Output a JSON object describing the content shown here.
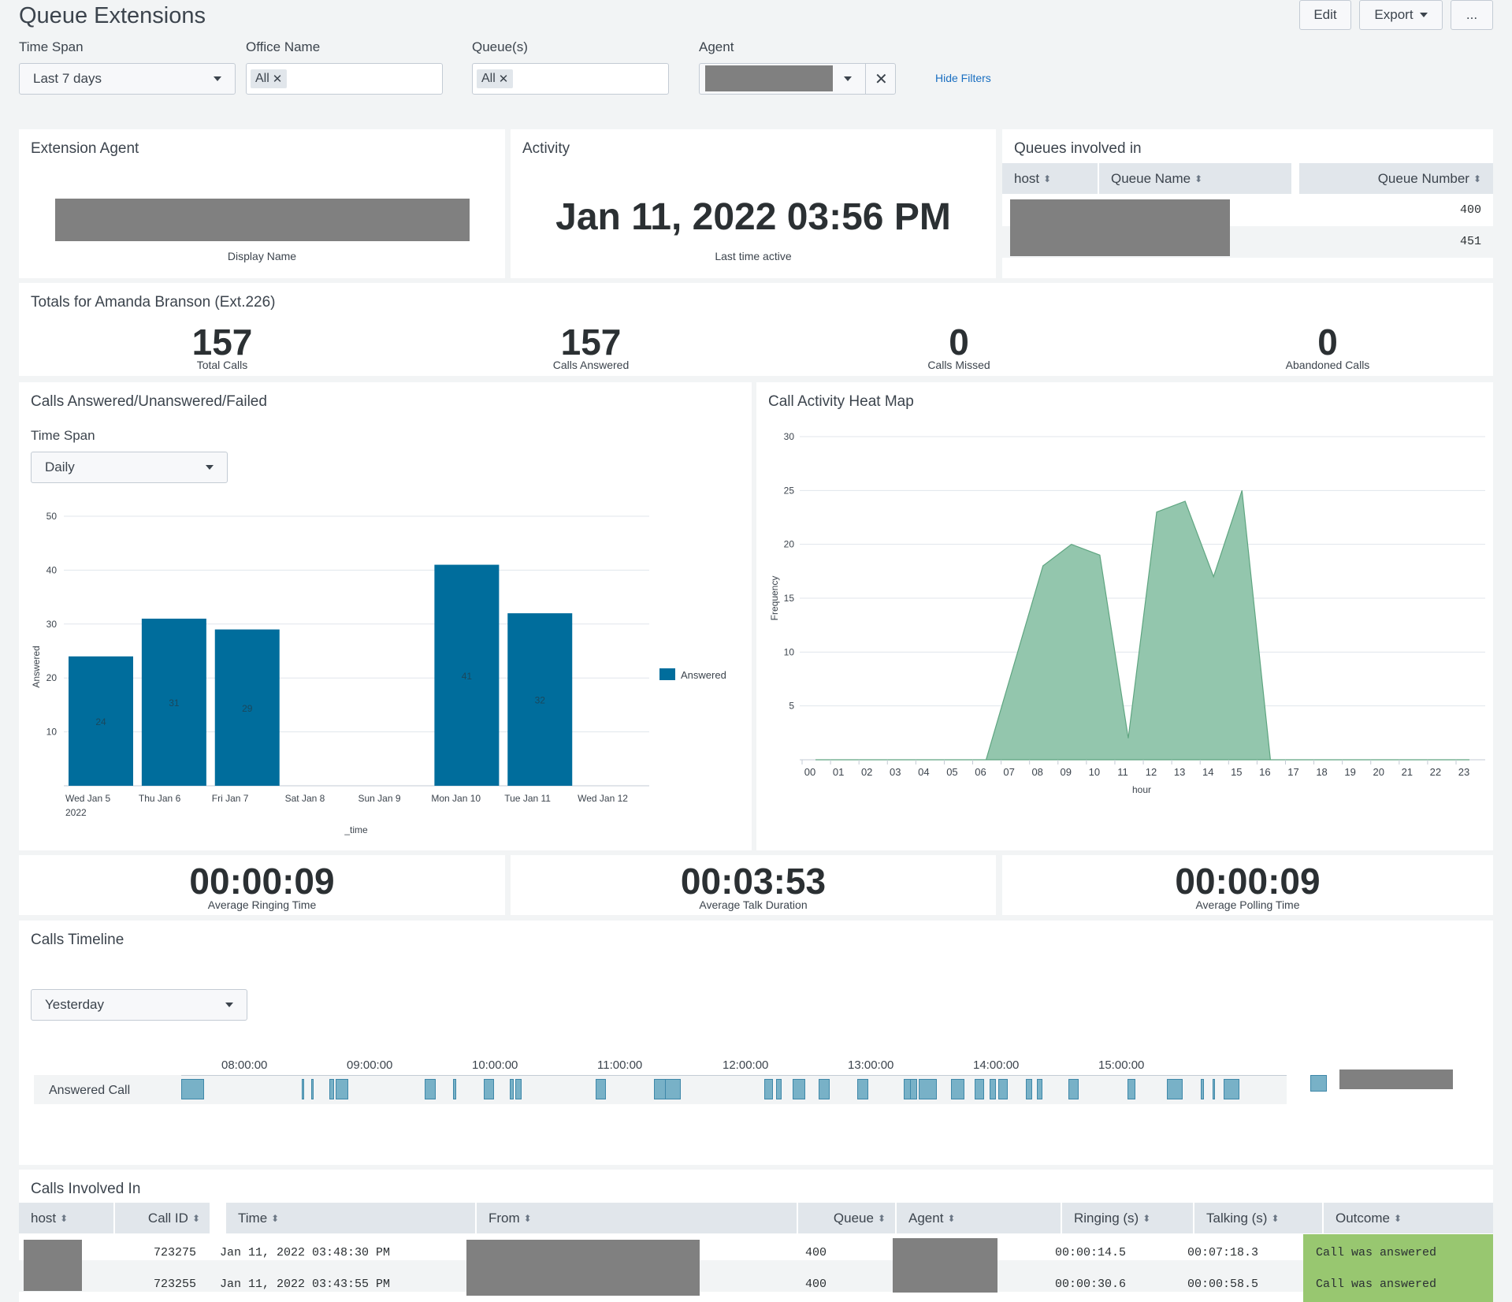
{
  "header": {
    "title": "Queue Extensions",
    "edit_label": "Edit",
    "export_label": "Export",
    "more_label": "..."
  },
  "filters": {
    "time_span_label": "Time Span",
    "time_span_value": "Last 7 days",
    "office_label": "Office Name",
    "office_chip": "All",
    "queues_label": "Queue(s)",
    "queues_chip": "All",
    "agent_label": "Agent",
    "hide_filters": "Hide Filters"
  },
  "extension_agent": {
    "title": "Extension Agent",
    "caption": "Display Name"
  },
  "activity": {
    "title": "Activity",
    "value": "Jan 11, 2022 03:56 PM",
    "caption": "Last time active"
  },
  "queues_involved": {
    "title": "Queues involved in",
    "columns": [
      "host",
      "Queue Name",
      "Queue Number"
    ],
    "rows": [
      {
        "number": "400"
      },
      {
        "number": "451"
      }
    ]
  },
  "totals": {
    "title": "Totals for Amanda Branson (Ext.226)",
    "items": [
      {
        "value": "157",
        "label": "Total Calls"
      },
      {
        "value": "157",
        "label": "Calls Answered"
      },
      {
        "value": "0",
        "label": "Calls Missed"
      },
      {
        "value": "0",
        "label": "Abandoned Calls"
      }
    ]
  },
  "calls_chart_panel": {
    "title": "Calls Answered/Unanswered/Failed",
    "span_label": "Time Span",
    "span_value": "Daily"
  },
  "heatmap_panel": {
    "title": "Call Activity Heat Map"
  },
  "averages": [
    {
      "value": "00:00:09",
      "label": "Average Ringing Time"
    },
    {
      "value": "00:03:53",
      "label": "Average Talk Duration"
    },
    {
      "value": "00:00:09",
      "label": "Average Polling Time"
    }
  ],
  "timeline": {
    "title": "Calls Timeline",
    "span_value": "Yesterday",
    "row_label": "Answered Call",
    "ticks": [
      "08:00:00",
      "09:00:00",
      "10:00:00",
      "11:00:00",
      "12:00:00",
      "13:00:00",
      "14:00:00",
      "15:00:00"
    ]
  },
  "calls_involved": {
    "title": "Calls Involved In",
    "columns": [
      "host",
      "Call ID",
      "Time",
      "From",
      "Queue",
      "Agent",
      "Ringing (s)",
      "Talking (s)",
      "Outcome"
    ],
    "rows": [
      {
        "call_id": "723275",
        "time": "Jan 11, 2022 03:48:30 PM",
        "queue": "400",
        "ringing": "00:00:14.5",
        "talking": "00:07:18.3",
        "outcome": "Call was answered"
      },
      {
        "call_id": "723255",
        "time": "Jan 11, 2022 03:43:55 PM",
        "queue": "400",
        "ringing": "00:00:30.6",
        "talking": "00:00:58.5",
        "outcome": "Call was answered"
      }
    ]
  },
  "chart_data": [
    {
      "type": "bar",
      "categories": [
        "Wed Jan 5\n2022",
        "Thu Jan 6",
        "Fri Jan 7",
        "Sat Jan 8",
        "Sun Jan 9",
        "Mon Jan 10",
        "Tue Jan 11",
        "Wed Jan 12"
      ],
      "series": [
        {
          "name": "Answered",
          "values": [
            24,
            31,
            29,
            0,
            0,
            41,
            32,
            0
          ],
          "color": "#006d9c"
        }
      ],
      "xlabel": "_time",
      "ylabel": "Answered",
      "ylim": [
        0,
        50
      ],
      "yticks": [
        10,
        20,
        30,
        40,
        50
      ],
      "legend": "right",
      "grid": true
    },
    {
      "type": "area",
      "x": [
        "00",
        "01",
        "02",
        "03",
        "04",
        "05",
        "06",
        "07",
        "08",
        "09",
        "10",
        "11",
        "12",
        "13",
        "14",
        "15",
        "16",
        "17",
        "18",
        "19",
        "20",
        "21",
        "22",
        "23"
      ],
      "series": [
        {
          "name": "",
          "values": [
            0,
            0,
            0,
            0,
            0,
            0,
            0,
            9,
            18,
            20,
            19,
            2,
            23,
            24,
            17,
            25,
            0,
            0,
            0,
            0,
            0,
            0,
            0,
            0
          ],
          "color": "#93c6ad"
        }
      ],
      "xlabel": "hour",
      "ylabel": "Frequency",
      "ylim": [
        0,
        30
      ],
      "yticks": [
        5,
        10,
        15,
        20,
        25,
        30
      ],
      "grid": true
    }
  ]
}
